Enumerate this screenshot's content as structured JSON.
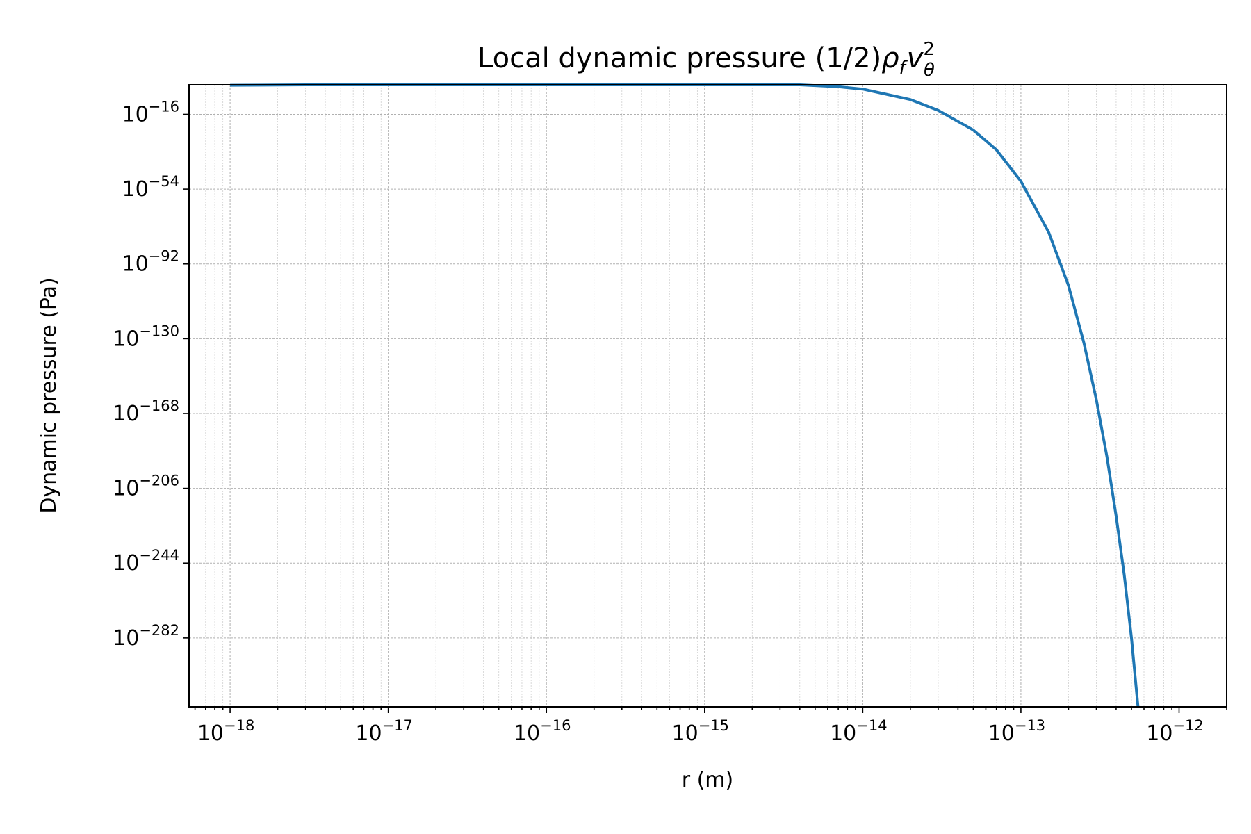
{
  "chart_data": {
    "type": "line",
    "title_main": "Local dynamic pressure (1/2)",
    "title_rho": "ρ",
    "title_rho_sub": "f",
    "title_v": "v",
    "title_v_sup": "2",
    "title_v_sub": "θ",
    "xlabel": "r (m)",
    "ylabel": "Dynamic pressure (Pa)",
    "x_scale": "log",
    "y_scale": "log",
    "xlim": [
      5.5e-19,
      2e-12
    ],
    "ylim_exp": [
      -317,
      -1
    ],
    "x_ticks": [
      {
        "base": "10",
        "exp": "−18"
      },
      {
        "base": "10",
        "exp": "−17"
      },
      {
        "base": "10",
        "exp": "−16"
      },
      {
        "base": "10",
        "exp": "−15"
      },
      {
        "base": "10",
        "exp": "−14"
      },
      {
        "base": "10",
        "exp": "−13"
      },
      {
        "base": "10",
        "exp": "−12"
      }
    ],
    "y_ticks": [
      {
        "base": "10",
        "exp": "−16"
      },
      {
        "base": "10",
        "exp": "−54"
      },
      {
        "base": "10",
        "exp": "−92"
      },
      {
        "base": "10",
        "exp": "−130"
      },
      {
        "base": "10",
        "exp": "−168"
      },
      {
        "base": "10",
        "exp": "−206"
      },
      {
        "base": "10",
        "exp": "−244"
      },
      {
        "base": "10",
        "exp": "−282"
      }
    ],
    "grid": true,
    "series": [
      {
        "color": "#1f77b4",
        "x": [
          1e-18,
          3e-18,
          1e-17,
          3e-17,
          1e-16,
          3e-16,
          1e-15,
          2e-15,
          4e-15,
          7e-15,
          1e-14,
          2e-14,
          3e-14,
          5e-14,
          7e-14,
          1e-13,
          1.5e-13,
          2e-13,
          2.5e-13,
          3e-13,
          3.5e-13,
          4e-13,
          4.5e-13,
          5e-13,
          5.5e-13
        ],
        "y_log10": [
          -1.2,
          -0.8,
          -0.3,
          0.2,
          0.6,
          1.0,
          1.4,
          1.3,
          0.2,
          -2.0,
          -3.2,
          -8.5,
          -14.0,
          -24.0,
          -34.0,
          -50.0,
          -76.0,
          -103.0,
          -132.0,
          -161.0,
          -190.0,
          -220.0,
          -250.0,
          -282.0,
          -317.0
        ]
      }
    ]
  }
}
